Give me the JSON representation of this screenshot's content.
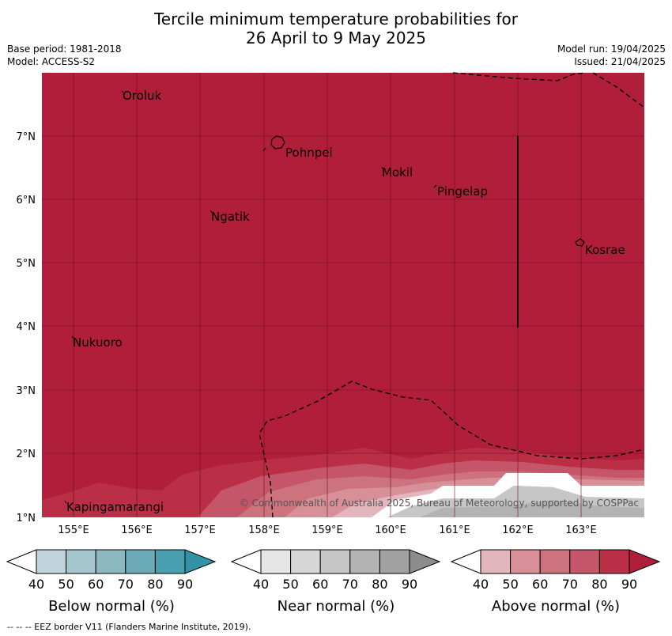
{
  "header": {
    "title_line1": "Tercile minimum temperature probabilities for",
    "title_line2": "26 April to 9 May 2025",
    "base_period": "Base period: 1981-2018",
    "model": "Model: ACCESS-S2",
    "model_run": "Model run: 19/04/2025",
    "issued": "Issued: 21/04/2025"
  },
  "map": {
    "lat_ticks": [
      "1°N",
      "2°N",
      "3°N",
      "4°N",
      "5°N",
      "6°N",
      "7°N"
    ],
    "lon_ticks": [
      "155°E",
      "156°E",
      "157°E",
      "158°E",
      "159°E",
      "160°E",
      "161°E",
      "162°E",
      "163°E"
    ],
    "places": [
      "Oroluk",
      "Pohnpei",
      "Mokil",
      "Pingelap",
      "Ngatik",
      "Kosrae",
      "Nukuoro",
      "Kapingamarangi"
    ],
    "copyright": "© Commonwealth of Australia 2025, Bureau of Meteorology, supported by COSPPac",
    "dominant_category": "Above normal",
    "dominant_probability": "90+"
  },
  "legends": [
    {
      "title": "Below normal (%)",
      "ticks": [
        "40",
        "50",
        "60",
        "70",
        "80",
        "90"
      ],
      "colors": [
        "#ffffff",
        "#bfd4da",
        "#a5c6cc",
        "#8ab7c0",
        "#69aab6",
        "#4a9fae",
        "#3393a6"
      ]
    },
    {
      "title": "Near normal (%)",
      "ticks": [
        "40",
        "50",
        "60",
        "70",
        "80",
        "90"
      ],
      "colors": [
        "#ffffff",
        "#e6e6e6",
        "#d6d6d6",
        "#c6c6c6",
        "#b3b3b3",
        "#a1a1a1",
        "#8c8c8c"
      ]
    },
    {
      "title": "Above normal (%)",
      "ticks": [
        "40",
        "50",
        "60",
        "70",
        "80",
        "90"
      ],
      "colors": [
        "#ffffff",
        "#e2b6bd",
        "#d79097",
        "#cd737e",
        "#c55568",
        "#ba2e46",
        "#b01e3a"
      ]
    }
  ],
  "footnote": "--  --  -- EEZ border V11 (Flanders Marine Institute, 2019)."
}
